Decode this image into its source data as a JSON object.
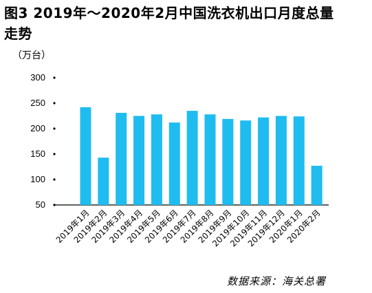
{
  "chart_data": {
    "type": "bar",
    "title": "图3 2019年～2020年2月中国洗衣机出口月度总量走势",
    "unit_label": "（万台）",
    "source": "数据来源：海关总署",
    "categories": [
      "2019年1月",
      "2019年2月",
      "2019年3月",
      "2019年4月",
      "2019年5月",
      "2019年6月",
      "2019年7月",
      "2019年8月",
      "2019年9月",
      "2019年10月",
      "2019年11月",
      "2019年12月",
      "2020年1月",
      "2020年2月"
    ],
    "values": [
      242,
      143,
      231,
      225,
      228,
      212,
      235,
      228,
      219,
      216,
      222,
      225,
      224,
      127
    ],
    "yticks": [
      50,
      100,
      150,
      200,
      250,
      300
    ],
    "ylim": [
      50,
      300
    ],
    "bar_color": "#1fbcf0",
    "grid": false
  }
}
